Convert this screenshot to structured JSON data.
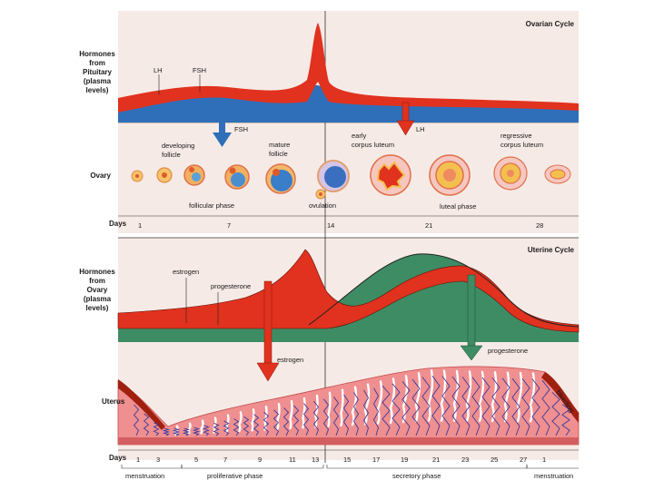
{
  "ovarian": {
    "title": "Ovarian Cycle",
    "pituitary_label": [
      "Hormones",
      "from",
      "Pituitary",
      "(plasma",
      "levels)"
    ],
    "lh": "LH",
    "fsh": "FSH",
    "fsh_arrow": "FSH",
    "lh_arrow": "LH",
    "ovary": "Ovary",
    "developing_follicle": [
      "developing",
      "follicle"
    ],
    "mature_follicle": [
      "mature",
      "follicle"
    ],
    "early_corpus_luteum": [
      "early",
      "corpus luteum"
    ],
    "regressive_corpus_luteum": [
      "regressive",
      "corpus luteum"
    ],
    "follicular_phase": "follicular phase",
    "ovulation": "ovulation",
    "luteal_phase": "luteal phase",
    "days_label": "Days",
    "days": [
      "1",
      "7",
      "14",
      "21",
      "28"
    ]
  },
  "uterine": {
    "title": "Uterine Cycle",
    "ovary_label": [
      "Hormones",
      "from",
      "Ovary",
      "(plasma",
      "levels)"
    ],
    "estrogen": "estrogen",
    "progesterone": "progesterone",
    "estrogen_arrow": "estrogen",
    "progesterone_arrow": "progesterone",
    "uterus": "Uterus",
    "bleeding": "bleeding",
    "days_label": "Days",
    "days": [
      "1",
      "3",
      "5",
      "7",
      "9",
      "11",
      "13",
      "15",
      "17",
      "19",
      "21",
      "23",
      "25",
      "27",
      "1"
    ],
    "menstruation": "menstruation",
    "proliferative_phase": "proliferative phase",
    "secretory_phase": "secretory phase",
    "menstruation_end": "menstruation"
  },
  "colors": {
    "lh_red": "#e0321e",
    "fsh_blue": "#2f6eb8",
    "progesterone_green": "#3e8c64",
    "uterus_pink": "#ef8f90",
    "vein_blue": "#3a3a9a",
    "panel_bg": "#f6eae6"
  }
}
